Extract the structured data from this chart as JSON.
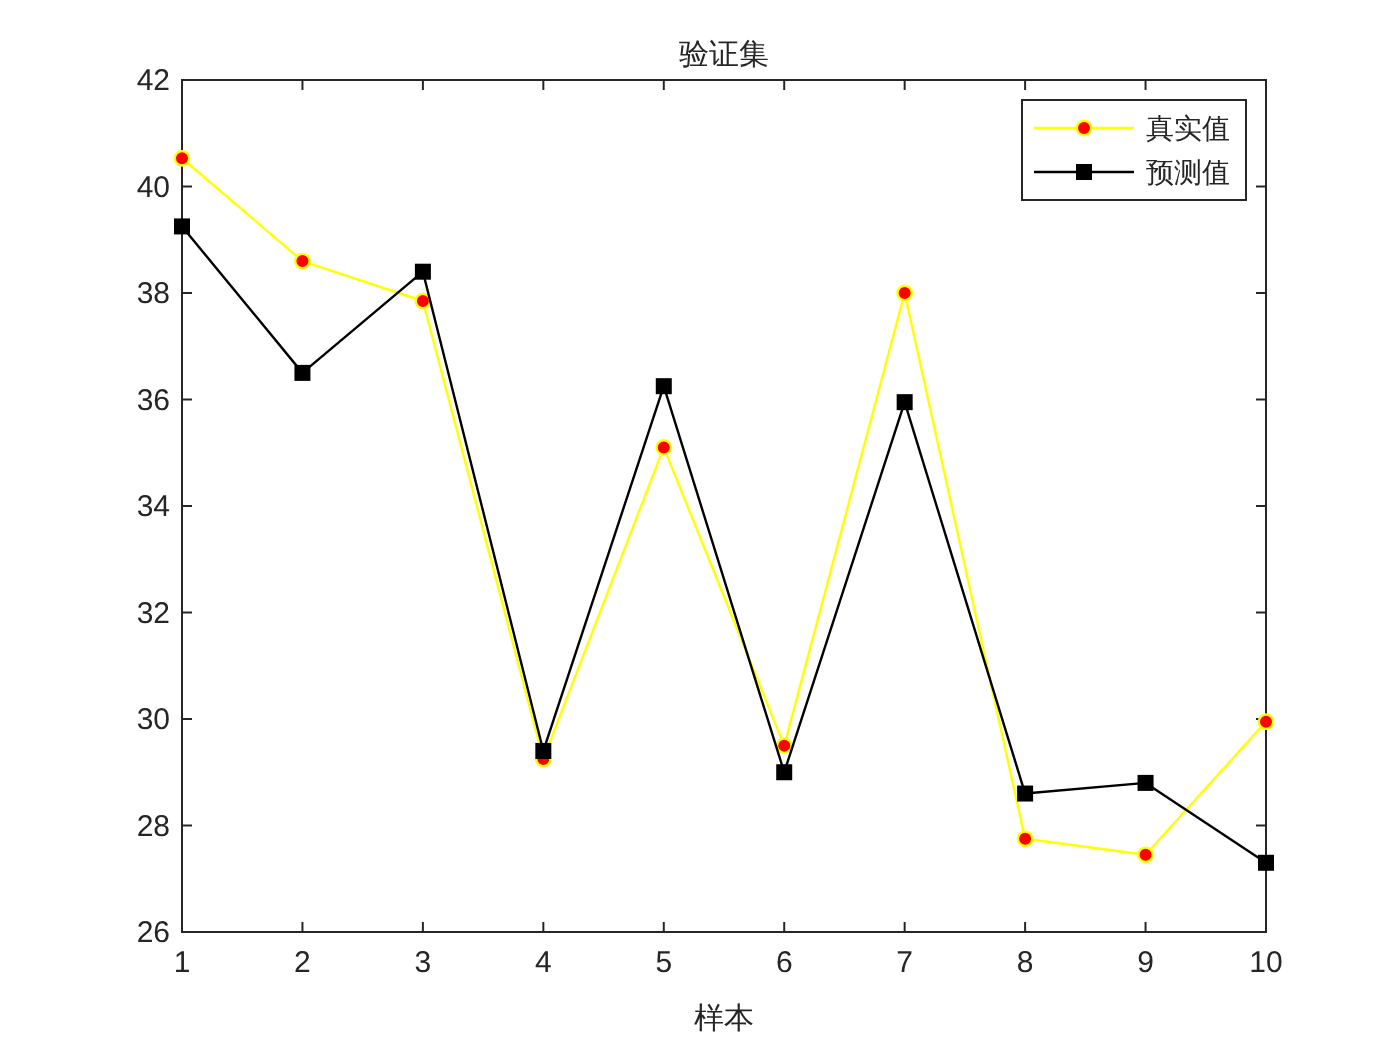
{
  "chart_data": {
    "type": "line",
    "title": "验证集",
    "xlabel": "样本",
    "x": [
      1,
      2,
      3,
      4,
      5,
      6,
      7,
      8,
      9,
      10
    ],
    "xlim": [
      1,
      10
    ],
    "xticks": [
      1,
      2,
      3,
      4,
      5,
      6,
      7,
      8,
      9,
      10
    ],
    "ylim": [
      26,
      42
    ],
    "yticks": [
      26,
      28,
      30,
      32,
      34,
      36,
      38,
      40,
      42
    ],
    "grid": false,
    "legend": "top right",
    "series": [
      {
        "name": "真实值",
        "color": "#ffff00",
        "marker": "circle",
        "values": [
          40.53,
          38.6,
          37.85,
          29.25,
          35.1,
          29.5,
          38.0,
          27.75,
          27.45,
          29.95
        ]
      },
      {
        "name": "预测值",
        "color": "#000000",
        "marker": "square",
        "values": [
          39.25,
          36.5,
          38.4,
          29.4,
          36.25,
          29.0,
          35.95,
          28.6,
          28.8,
          27.3
        ]
      }
    ]
  }
}
